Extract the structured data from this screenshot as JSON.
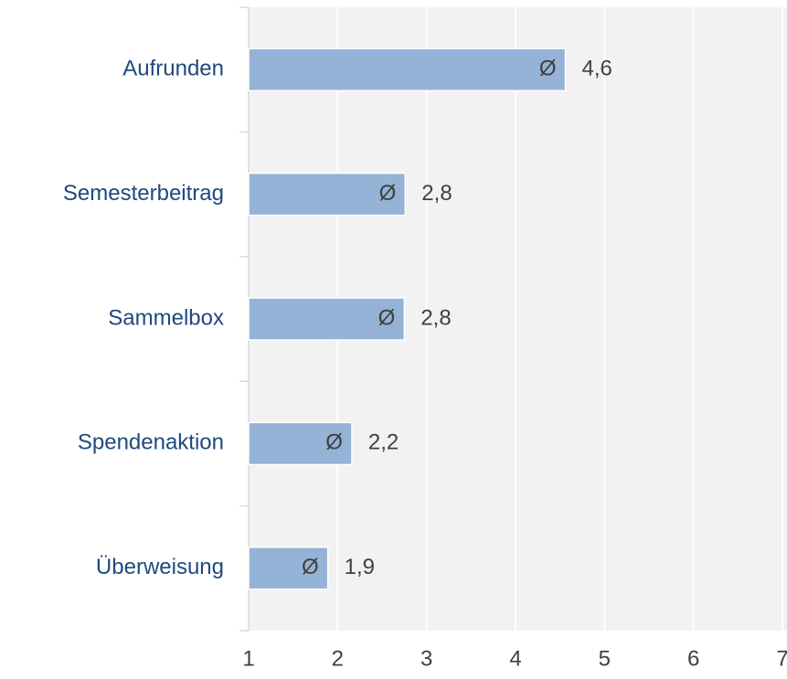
{
  "chart_data": {
    "type": "hbar",
    "categories": [
      "Aufrunden",
      "Semesterbeitrag",
      "Sammelbox",
      "Spendenaktion",
      "Überweisung"
    ],
    "values": [
      4.56,
      2.76,
      2.75,
      2.16,
      1.89
    ],
    "value_labels": [
      "4,6",
      "2,8",
      "2,8",
      "2,2",
      "1,9"
    ],
    "bar_symbol": "Ø",
    "color": "#95b3d7",
    "xlim": [
      1,
      7
    ],
    "xticks": [
      1,
      2,
      3,
      4,
      5,
      6,
      7
    ],
    "grid": true
  }
}
